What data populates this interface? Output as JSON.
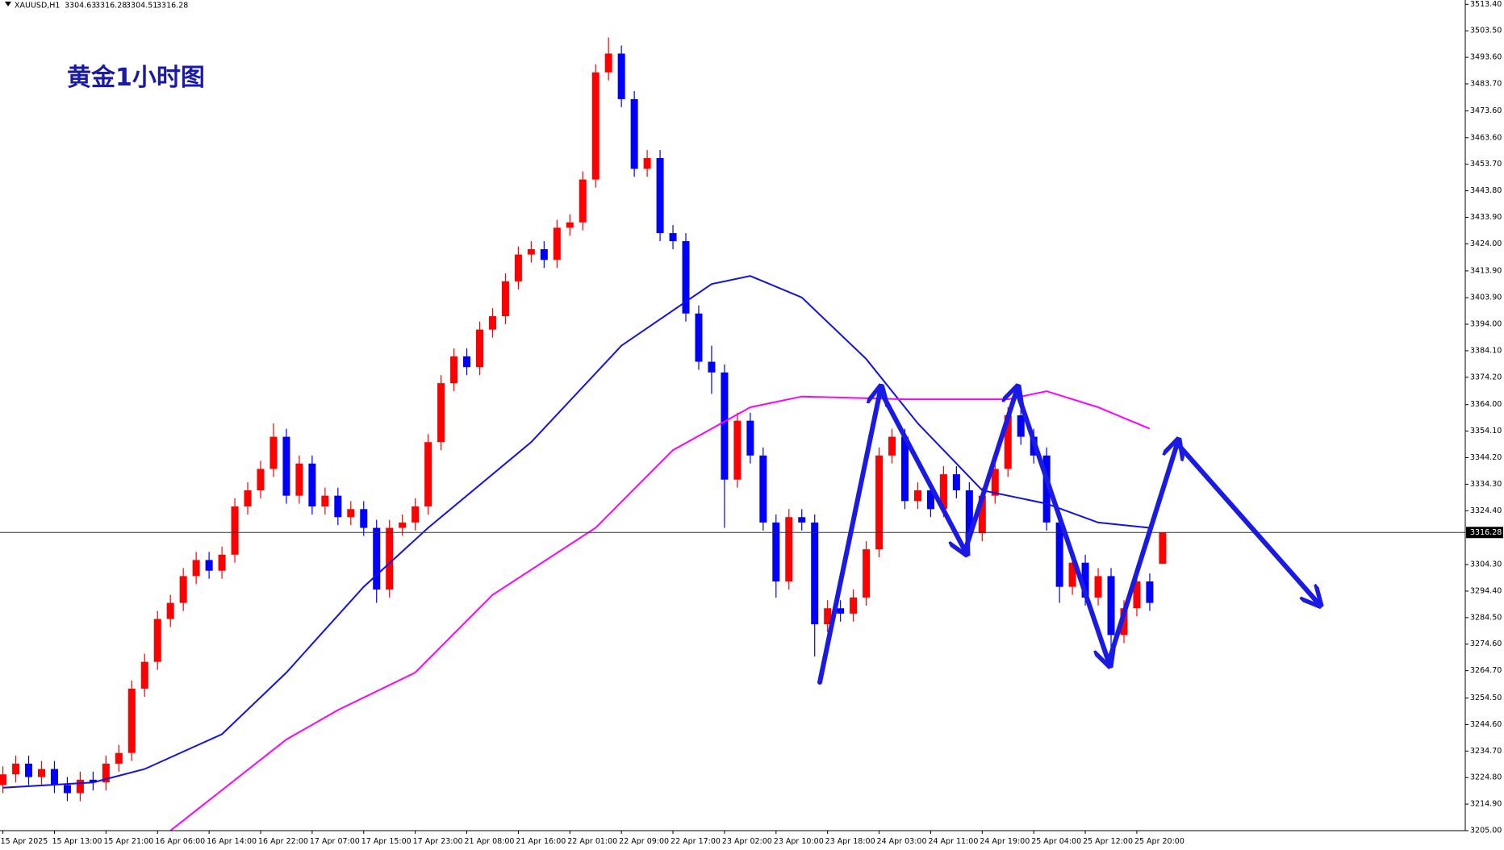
{
  "chart_data": {
    "type": "candlestick",
    "title": "黄金1小时图",
    "symbol": "XAUUSD,H1",
    "up_color": "#ff0000",
    "down_color": "#0000ff",
    "ylim": [
      3205,
      3515
    ],
    "yticks": [
      {
        "value": 3513.4,
        "label": "3513.40"
      },
      {
        "value": 3503.5,
        "label": "3503.50"
      },
      {
        "value": 3493.6,
        "label": "3493.60"
      },
      {
        "value": 3483.7,
        "label": "3483.70"
      },
      {
        "value": 3473.6,
        "label": "3473.60"
      },
      {
        "value": 3463.6,
        "label": "3463.60"
      },
      {
        "value": 3453.7,
        "label": "3453.70"
      },
      {
        "value": 3443.8,
        "label": "3443.80"
      },
      {
        "value": 3433.9,
        "label": "3433.90"
      },
      {
        "value": 3424,
        "label": "3424.00"
      },
      {
        "value": 3413.9,
        "label": "3413.90"
      },
      {
        "value": 3403.9,
        "label": "3403.90"
      },
      {
        "value": 3394,
        "label": "3394.00"
      },
      {
        "value": 3384.1,
        "label": "3384.10"
      },
      {
        "value": 3374.2,
        "label": "3374.20"
      },
      {
        "value": 3364,
        "label": "3364.00"
      },
      {
        "value": 3354.1,
        "label": "3354.10"
      },
      {
        "value": 3344.2,
        "label": "3344.20"
      },
      {
        "value": 3334.3,
        "label": "3334.30"
      },
      {
        "value": 3324.4,
        "label": "3324.40"
      },
      {
        "value": 3304.3,
        "label": "3304.30"
      },
      {
        "value": 3294.4,
        "label": "3294.40"
      },
      {
        "value": 3284.5,
        "label": "3284.50"
      },
      {
        "value": 3274.6,
        "label": "3274.60"
      },
      {
        "value": 3264.7,
        "label": "3264.70"
      },
      {
        "value": 3254.5,
        "label": "3254.50"
      },
      {
        "value": 3244.6,
        "label": "3244.60"
      },
      {
        "value": 3234.7,
        "label": "3234.70"
      },
      {
        "value": 3224.8,
        "label": "3224.80"
      },
      {
        "value": 3214.9,
        "label": "3214.90"
      },
      {
        "value": 3205,
        "label": "3205.00"
      }
    ],
    "time_labels": [
      "15 Apr 2025",
      "15 Apr 13:00",
      "15 Apr 21:00",
      "16 Apr 06:00",
      "16 Apr 14:00",
      "16 Apr 22:00",
      "17 Apr 07:00",
      "17 Apr 15:00",
      "17 Apr 23:00",
      "21 Apr 08:00",
      "21 Apr 16:00",
      "22 Apr 01:00",
      "22 Apr 09:00",
      "22 Apr 17:00",
      "23 Apr 02:00",
      "23 Apr 10:00",
      "23 Apr 18:00",
      "24 Apr 03:00",
      "24 Apr 11:00",
      "24 Apr 19:00",
      "25 Apr 04:00",
      "25 Apr 12:00",
      "25 Apr 20:00"
    ],
    "open": [
      3222,
      3226,
      3230,
      3225,
      3228,
      3222,
      3219,
      3224,
      3223,
      3230,
      3234,
      3258,
      3268,
      3284,
      3290,
      3300,
      3306,
      3302,
      3308,
      3326,
      3332,
      3340,
      3352,
      3330,
      3342,
      3326,
      3330,
      3322,
      3325,
      3318,
      3295,
      3318,
      3320,
      3326,
      3350,
      3372,
      3382,
      3378,
      3392,
      3397,
      3410,
      3420,
      3422,
      3418,
      3430,
      3432,
      3448,
      3488,
      3495,
      3478,
      3452,
      3456,
      3428,
      3425,
      3398,
      3380,
      3376,
      3336,
      3358,
      3345,
      3320,
      3298,
      3322,
      3320,
      3282,
      3288,
      3286,
      3292,
      3310,
      3345,
      3352,
      3328,
      3332,
      3325,
      3338,
      3332,
      3316,
      3330,
      3340,
      3360,
      3352,
      3345,
      3320,
      3296,
      3305,
      3292,
      3300,
      3278,
      3288,
      3298,
      3304.63
    ],
    "high": [
      3229,
      3233,
      3233,
      3231,
      3231,
      3225,
      3227,
      3227,
      3233,
      3237,
      3261,
      3271,
      3287,
      3293,
      3303,
      3309,
      3309,
      3311,
      3329,
      3335,
      3343,
      3357,
      3355,
      3345,
      3345,
      3333,
      3333,
      3328,
      3328,
      3321,
      3321,
      3323,
      3329,
      3353,
      3375,
      3385,
      3385,
      3395,
      3400,
      3413,
      3423,
      3425,
      3425,
      3433,
      3435,
      3451,
      3491,
      3501,
      3498,
      3481,
      3459,
      3459,
      3431,
      3428,
      3401,
      3386,
      3379,
      3361,
      3361,
      3348,
      3323,
      3325,
      3325,
      3323,
      3291,
      3291,
      3295,
      3313,
      3348,
      3355,
      3355,
      3335,
      3335,
      3341,
      3341,
      3335,
      3333,
      3343,
      3363,
      3363,
      3355,
      3348,
      3323,
      3308,
      3308,
      3303,
      3303,
      3291,
      3301,
      3301,
      3316.28
    ],
    "low": [
      3219,
      3223,
      3222,
      3222,
      3219,
      3216,
      3216,
      3220,
      3220,
      3227,
      3231,
      3255,
      3265,
      3281,
      3287,
      3297,
      3299,
      3299,
      3305,
      3323,
      3329,
      3337,
      3327,
      3327,
      3323,
      3323,
      3319,
      3319,
      3315,
      3290,
      3292,
      3315,
      3317,
      3323,
      3347,
      3369,
      3375,
      3375,
      3389,
      3394,
      3407,
      3417,
      3415,
      3415,
      3427,
      3429,
      3445,
      3485,
      3475,
      3449,
      3449,
      3425,
      3422,
      3395,
      3377,
      3368,
      3318,
      3333,
      3342,
      3317,
      3292,
      3295,
      3317,
      3270,
      3279,
      3283,
      3283,
      3289,
      3307,
      3342,
      3325,
      3325,
      3322,
      3322,
      3329,
      3313,
      3313,
      3327,
      3337,
      3349,
      3342,
      3317,
      3290,
      3293,
      3289,
      3289,
      3268,
      3275,
      3285,
      3287,
      3304.51
    ],
    "close": [
      3226,
      3230,
      3225,
      3228,
      3222,
      3219,
      3224,
      3223,
      3230,
      3234,
      3258,
      3268,
      3284,
      3290,
      3300,
      3306,
      3302,
      3308,
      3326,
      3332,
      3340,
      3352,
      3330,
      3342,
      3326,
      3330,
      3322,
      3325,
      3318,
      3295,
      3318,
      3320,
      3326,
      3350,
      3372,
      3382,
      3378,
      3392,
      3397,
      3410,
      3420,
      3422,
      3418,
      3430,
      3432,
      3448,
      3488,
      3495,
      3478,
      3452,
      3456,
      3428,
      3425,
      3398,
      3380,
      3376,
      3336,
      3358,
      3345,
      3320,
      3298,
      3322,
      3320,
      3282,
      3288,
      3286,
      3292,
      3310,
      3345,
      3352,
      3328,
      3332,
      3325,
      3338,
      3332,
      3316,
      3330,
      3340,
      3360,
      3352,
      3345,
      3320,
      3296,
      3305,
      3292,
      3300,
      3278,
      3288,
      3298,
      3290,
      3316.28
    ],
    "moving_averages": [
      {
        "color": "#1010ee",
        "x": [
          0,
          7,
          11,
          17,
          22,
          28,
          33,
          41,
          48,
          55,
          58,
          62,
          67,
          71,
          76,
          81,
          85,
          89
        ],
        "values": [
          3221,
          3223,
          3228,
          3241,
          3264,
          3296,
          3318,
          3350,
          3386,
          3409,
          3412,
          3404,
          3381,
          3357,
          3332,
          3327,
          3320,
          3318
        ]
      },
      {
        "color": "#ff00ff",
        "x": [
          13,
          22,
          26,
          32,
          38,
          46,
          52,
          58,
          62,
          70,
          78,
          81,
          85,
          89
        ],
        "values": [
          3205,
          3239,
          3250,
          3264,
          3293,
          3318,
          3347,
          3363,
          3367,
          3366,
          3366,
          3369,
          3363,
          3355
        ]
      }
    ]
  }
}
